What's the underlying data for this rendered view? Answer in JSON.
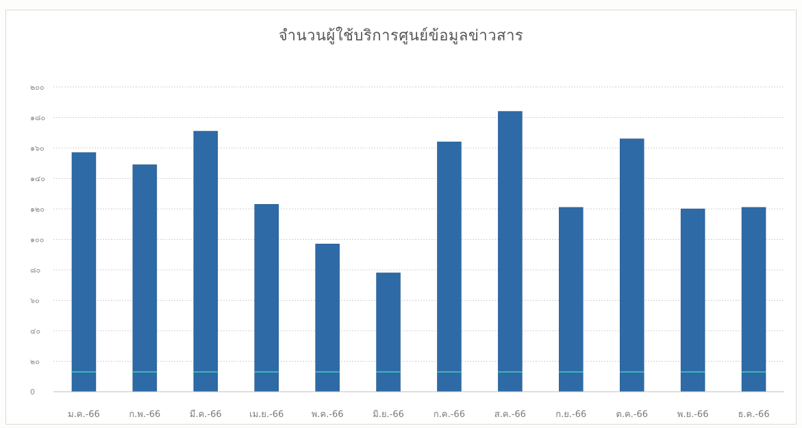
{
  "colors": {
    "bar": "#2e6aa6",
    "bar_edge": "#1f4f85",
    "target_line": "#3fd0b8",
    "grid": "#cfcfcf",
    "axis": "#bdbdbd"
  },
  "chart_data": {
    "type": "bar",
    "title": "จำนวนผู้ใช้บริการศูนย์ข้อมูลข่าวสาร",
    "xlabel": "",
    "ylabel": "",
    "ylim": [
      0,
      200
    ],
    "yticks": [
      0,
      20,
      40,
      60,
      80,
      100,
      120,
      140,
      160,
      180,
      200
    ],
    "ytick_labels": [
      "0",
      "๒๐",
      "๔๐",
      "๖๐",
      "๘๐",
      "๑๐๐",
      "๑๒๐",
      "๑๔๐",
      "๑๖๐",
      "๑๘๐",
      "๒๐๐"
    ],
    "grid": true,
    "legend": "none",
    "categories": [
      "ม.ค.-66",
      "ก.พ.-66",
      "มี.ค.-66",
      "เม.ย.-66",
      "พ.ค.-66",
      "มิ.ย.-66",
      "ก.ค.-66",
      "ส.ค.-66",
      "ก.ย.-66",
      "ต.ค.-66",
      "พ.ย.-66",
      "ธ.ค.-66"
    ],
    "series": [
      {
        "type": "bar",
        "values": [
          157,
          149,
          171,
          123,
          97,
          78,
          164,
          184,
          121,
          166,
          120,
          121
        ]
      },
      {
        "type": "line",
        "values": [
          13,
          13,
          13,
          13,
          13,
          13,
          13,
          13,
          13,
          13,
          13,
          13
        ]
      }
    ]
  }
}
